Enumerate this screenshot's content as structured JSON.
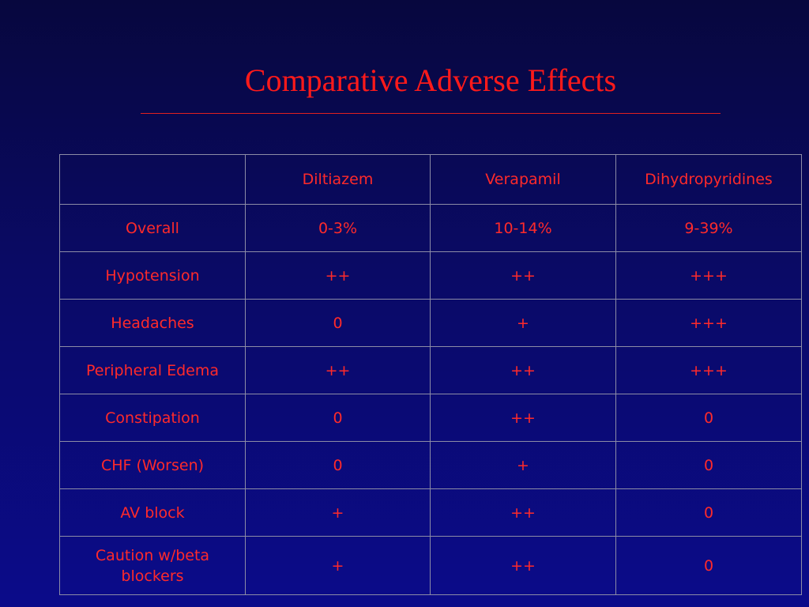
{
  "slide": {
    "title": "Comparative Adverse Effects"
  },
  "table": {
    "columns": [
      "",
      "Diltiazem",
      "Verapamil",
      "Dihydropyridines"
    ],
    "rows": [
      {
        "label": "Overall",
        "values": [
          "0-3%",
          "10-14%",
          "9-39%"
        ]
      },
      {
        "label": "Hypotension",
        "values": [
          "++",
          "++",
          "+++"
        ]
      },
      {
        "label": "Headaches",
        "values": [
          "0",
          "+",
          "+++"
        ]
      },
      {
        "label": "Peripheral Edema",
        "values": [
          "++",
          "++",
          "+++"
        ]
      },
      {
        "label": "Constipation",
        "values": [
          "0",
          "++",
          "0"
        ]
      },
      {
        "label": "CHF (Worsen)",
        "values": [
          "0",
          "+",
          "0"
        ]
      },
      {
        "label": "AV block",
        "values": [
          "+",
          "++",
          "0"
        ]
      },
      {
        "label": "Caution w/beta blockers",
        "values": [
          "+",
          "++",
          "0"
        ]
      }
    ]
  },
  "colors": {
    "text": "#ff2a2a",
    "background": "#0a0a66",
    "grid": "#8c8ca6"
  }
}
